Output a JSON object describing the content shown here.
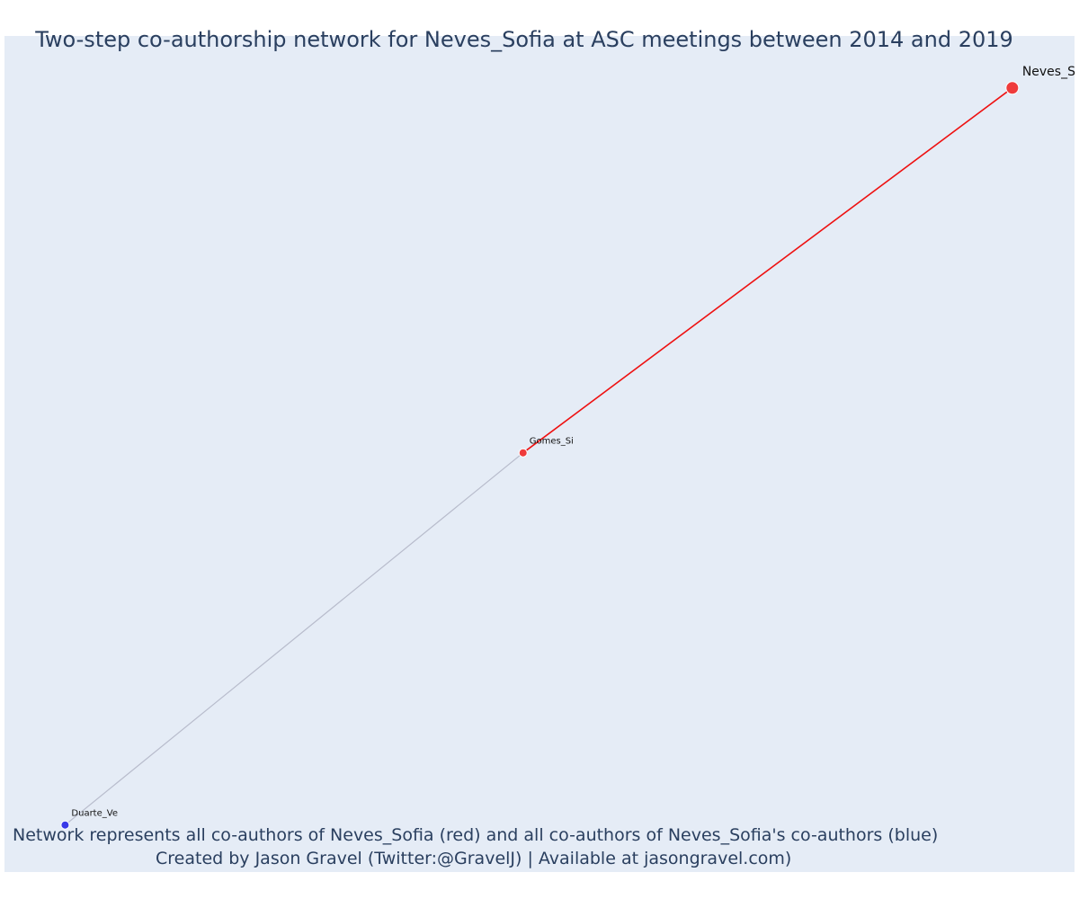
{
  "title": "Two-step co-authorship network for Neves_Sofia at ASC meetings between 2014 and 2019",
  "captions": {
    "line1": "Network represents all co-authors of Neves_Sofia (red) and all co-authors of Neves_Sofia's co-authors (blue)",
    "line2": "Created by Jason Gravel (Twitter:@GravelJ) | Available at jasongravel.com)"
  },
  "colors": {
    "plot_background": "#e5ecf6",
    "direct_coauthor": "#ef3b3b",
    "second_step_coauthor": "#3a3ae8",
    "direct_edge": "#ee1111",
    "indirect_edge": "#b8bccc",
    "text": "#2a3f5f"
  },
  "chart_data": {
    "type": "network",
    "xlim": [
      0,
      1
    ],
    "ylim": [
      0,
      1
    ],
    "nodes": [
      {
        "id": "neves",
        "label": "Neves_S",
        "x": 0.998,
        "y": 0.958,
        "group": "focal",
        "size": "large"
      },
      {
        "id": "gomes",
        "label": "Gomes_Si",
        "x": 0.497,
        "y": 0.507,
        "group": "coauthor",
        "size": "medium"
      },
      {
        "id": "duarte",
        "label": "Duarte_Ve",
        "x": 0.028,
        "y": 0.047,
        "group": "second_step",
        "size": "small"
      }
    ],
    "edges": [
      {
        "source": "neves",
        "target": "gomes",
        "type": "direct"
      },
      {
        "source": "gomes",
        "target": "duarte",
        "type": "indirect"
      }
    ]
  }
}
